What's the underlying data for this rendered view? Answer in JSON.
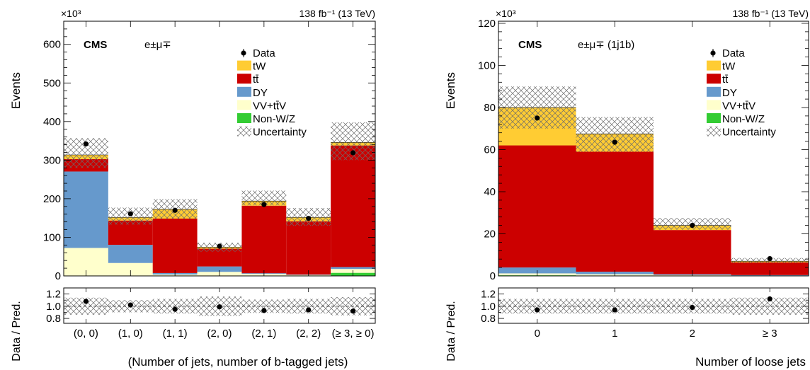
{
  "colors": {
    "tW": "#ffcc33",
    "ttbar": "#cc0000",
    "DY": "#6699cc",
    "VV": "#ffffcc",
    "NonWZ": "#33cc33",
    "uncertainty": "#666666"
  },
  "chart_data": [
    {
      "type": "bar",
      "stacked": true,
      "y_multiplier": "×10³",
      "lumi": "138 fb⁻¹ (13 TeV)",
      "experiment": "CMS",
      "channel": "e±μ∓",
      "ylabel": "Events",
      "xlabel": "(Number of jets, number of b-tagged jets)",
      "ratio_ylabel": "Data / Pred.",
      "ylim": [
        0,
        660
      ],
      "yticks": [
        0,
        100,
        200,
        300,
        400,
        500,
        600
      ],
      "ratio_ylim": [
        0.72,
        1.3
      ],
      "ratio_yticks": [
        "0.8",
        "1.0",
        "1.2"
      ],
      "categories": [
        "(0, 0)",
        "(1, 0)",
        "(1, 1)",
        "(2, 0)",
        "(2, 1)",
        "(2, 2)",
        "(≥ 3, ≥ 0)"
      ],
      "legend_position": "top-right",
      "legend": [
        "Data",
        "tW",
        "tt̄",
        "DY",
        "VV+tt̄V",
        "Non-W/Z",
        "Uncertainty"
      ],
      "series": [
        {
          "key": "NonWZ",
          "values": [
            0.5,
            0.5,
            0.5,
            0.5,
            1,
            0.5,
            8
          ]
        },
        {
          "key": "VV",
          "values": [
            72,
            33,
            3,
            10,
            4,
            2,
            10
          ]
        },
        {
          "key": "DY",
          "values": [
            198,
            47,
            4,
            14,
            2,
            1,
            5
          ]
        },
        {
          "key": "ttbar",
          "values": [
            32,
            63,
            141,
            46,
            175,
            138,
            315
          ]
        },
        {
          "key": "tW",
          "values": [
            11,
            8,
            24,
            4,
            12,
            10,
            8
          ]
        }
      ],
      "data": [
        342,
        161,
        170,
        77,
        185,
        149,
        319
      ],
      "unc_high": [
        357,
        177,
        199,
        86,
        221,
        176,
        398
      ],
      "unc_low": [
        280,
        133,
        148,
        63,
        183,
        130,
        300
      ],
      "ratio": [
        1.08,
        1.02,
        0.95,
        0.99,
        0.93,
        0.94,
        0.92
      ],
      "ratio_unc": [
        0.14,
        0.1,
        0.12,
        0.16,
        0.11,
        0.12,
        0.15
      ]
    },
    {
      "type": "bar",
      "stacked": true,
      "y_multiplier": "×10³",
      "lumi": "138 fb⁻¹ (13 TeV)",
      "experiment": "CMS",
      "channel": "e±μ∓ (1j1b)",
      "ylabel": "Events",
      "xlabel": "Number of loose jets",
      "ratio_ylabel": "Data / Pred.",
      "ylim": [
        0,
        121
      ],
      "yticks": [
        0,
        20,
        40,
        60,
        80,
        100,
        120
      ],
      "ratio_ylim": [
        0.72,
        1.3
      ],
      "ratio_yticks": [
        "0.8",
        "1.0",
        "1.2"
      ],
      "categories": [
        "0",
        "1",
        "2",
        "≥ 3"
      ],
      "legend_position": "top-right",
      "legend": [
        "Data",
        "tW",
        "tt̄",
        "DY",
        "VV+tt̄V",
        "Non-W/Z",
        "Uncertainty"
      ],
      "series": [
        {
          "key": "NonWZ",
          "values": [
            0.3,
            0.2,
            0.1,
            0.1
          ]
        },
        {
          "key": "VV",
          "values": [
            0.9,
            0.6,
            0.3,
            0.1
          ]
        },
        {
          "key": "DY",
          "values": [
            2.8,
            1.2,
            0.4,
            0.2
          ]
        },
        {
          "key": "ttbar",
          "values": [
            58,
            57,
            21,
            6
          ]
        },
        {
          "key": "tW",
          "values": [
            18,
            8.5,
            2.2,
            0.6
          ]
        }
      ],
      "data": [
        75,
        63.5,
        24,
        8.2
      ],
      "unc_high": [
        90,
        75.5,
        27.5,
        8.5
      ],
      "unc_low": [
        70,
        59,
        22,
        6.2
      ],
      "ratio": [
        0.94,
        0.94,
        0.98,
        1.12
      ],
      "ratio_unc": [
        0.12,
        0.12,
        0.12,
        0.14
      ]
    }
  ]
}
